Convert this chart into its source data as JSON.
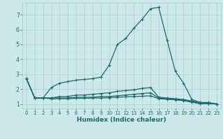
{
  "xlabel": "Humidex (Indice chaleur)",
  "background_color": "#cce8ea",
  "grid_color": "#aacfd2",
  "line_color": "#1a6b6b",
  "xlim": [
    -0.5,
    23.5
  ],
  "ylim": [
    0.7,
    7.8
  ],
  "x": [
    0,
    1,
    2,
    3,
    4,
    5,
    6,
    7,
    8,
    9,
    10,
    11,
    12,
    13,
    14,
    15,
    16,
    17,
    18,
    19,
    20,
    21,
    22,
    23
  ],
  "series_main": [
    2.7,
    1.4,
    1.4,
    2.1,
    2.4,
    2.5,
    2.6,
    2.65,
    2.7,
    2.8,
    3.6,
    5.0,
    5.4,
    6.1,
    6.7,
    7.4,
    7.5,
    5.3,
    3.2,
    2.4,
    1.3,
    1.1,
    1.1,
    1.0
  ],
  "series_med": [
    2.7,
    1.4,
    1.4,
    1.4,
    1.5,
    1.5,
    1.6,
    1.6,
    1.65,
    1.7,
    1.75,
    1.85,
    1.9,
    1.95,
    2.05,
    2.1,
    1.45,
    1.4,
    1.35,
    1.3,
    1.2,
    1.1,
    1.05,
    1.0
  ],
  "series_low1": [
    2.7,
    1.4,
    1.4,
    1.4,
    1.4,
    1.4,
    1.45,
    1.45,
    1.45,
    1.5,
    1.5,
    1.55,
    1.6,
    1.65,
    1.7,
    1.75,
    1.4,
    1.35,
    1.3,
    1.25,
    1.15,
    1.05,
    1.05,
    1.0
  ],
  "series_low2": [
    2.7,
    1.4,
    1.4,
    1.35,
    1.35,
    1.35,
    1.38,
    1.38,
    1.4,
    1.4,
    1.42,
    1.45,
    1.48,
    1.5,
    1.52,
    1.55,
    1.35,
    1.32,
    1.28,
    1.22,
    1.12,
    1.02,
    1.02,
    1.0
  ],
  "xticks": [
    0,
    1,
    2,
    3,
    4,
    5,
    6,
    7,
    8,
    9,
    10,
    11,
    12,
    13,
    14,
    15,
    16,
    17,
    18,
    19,
    20,
    21,
    22,
    23
  ],
  "yticks": [
    1,
    2,
    3,
    4,
    5,
    6,
    7
  ],
  "xlabel_fontsize": 6.5,
  "tick_fontsize": 5.2
}
